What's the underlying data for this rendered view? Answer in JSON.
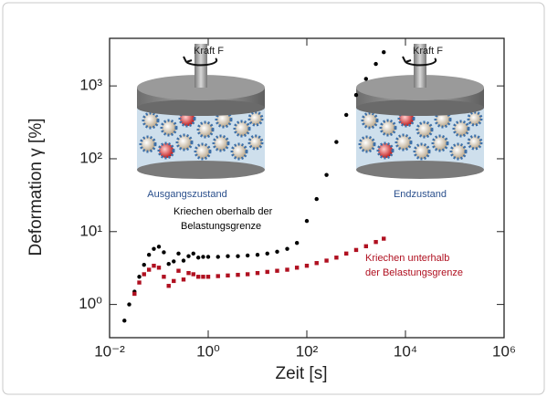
{
  "chart_data": {
    "type": "scatter",
    "x_label": "Zeit  [s]",
    "y_label": "Deformation γ  [%]",
    "log_x": true,
    "log_y": true,
    "xlim": [
      0.01,
      1000000
    ],
    "ylim": [
      0.35,
      4500
    ],
    "xticks": [
      {
        "value": 0.01,
        "label": "10⁻²"
      },
      {
        "value": 1,
        "label": "10⁰"
      },
      {
        "value": 100,
        "label": "10²"
      },
      {
        "value": 10000,
        "label": "10⁴"
      },
      {
        "value": 1000000,
        "label": "10⁶"
      }
    ],
    "yticks": [
      {
        "value": 1,
        "label": "10⁰"
      },
      {
        "value": 10,
        "label": "10¹"
      },
      {
        "value": 100,
        "label": "10²"
      },
      {
        "value": 1000,
        "label": "10³"
      }
    ],
    "series": [
      {
        "color": "#000000",
        "marker": "circle",
        "x": [
          0.02,
          0.025,
          0.032,
          0.04,
          0.05,
          0.063,
          0.079,
          0.1,
          0.126,
          0.158,
          0.2,
          0.25,
          0.316,
          0.4,
          0.5,
          0.63,
          0.79,
          1,
          1.58,
          2.5,
          4,
          6.3,
          10,
          15.8,
          25,
          40,
          63,
          100,
          158,
          251,
          398,
          631,
          1000,
          1585,
          2512,
          3631
        ],
        "values": [
          0.6,
          1.0,
          1.5,
          2.4,
          3.5,
          4.8,
          5.8,
          6.2,
          5.2,
          3.6,
          3.9,
          5.0,
          4.0,
          4.6,
          5.0,
          4.4,
          4.5,
          4.5,
          4.5,
          4.6,
          4.6,
          4.7,
          4.8,
          5.0,
          5.3,
          5.8,
          7,
          14,
          28,
          60,
          170,
          400,
          750,
          1250,
          2000,
          2900
        ]
      },
      {
        "color": "#b01020",
        "marker": "square",
        "x": [
          0.032,
          0.04,
          0.05,
          0.063,
          0.079,
          0.1,
          0.126,
          0.158,
          0.2,
          0.25,
          0.316,
          0.4,
          0.5,
          0.63,
          0.79,
          1,
          1.58,
          2.5,
          4,
          6.3,
          10,
          15.8,
          25,
          40,
          63,
          100,
          158,
          251,
          398,
          631,
          1000,
          1585,
          2512,
          3631
        ],
        "values": [
          1.4,
          2.0,
          2.6,
          3.0,
          3.4,
          3.2,
          2.4,
          1.8,
          2.1,
          2.9,
          2.2,
          2.7,
          2.6,
          2.4,
          2.4,
          2.4,
          2.45,
          2.5,
          2.55,
          2.6,
          2.7,
          2.8,
          2.9,
          3.0,
          3.2,
          3.4,
          3.7,
          4.0,
          4.4,
          5.0,
          5.6,
          6.3,
          7.2,
          8.0
        ]
      }
    ],
    "annotations": [
      {
        "lines": [
          "Kraft F"
        ],
        "color": "#222222"
      },
      {
        "lines": [
          "Kraft F"
        ],
        "color": "#222222"
      },
      {
        "lines": [
          "Ausgangszustand"
        ],
        "color": "#2a4f8c"
      },
      {
        "lines": [
          "Endzustand"
        ],
        "color": "#2a4f8c"
      },
      {
        "lines": [
          "Kriechen oberhalb der",
          "Belastungsgrenze"
        ],
        "color": "#000000"
      },
      {
        "lines": [
          "Kriechen unterhalb",
          "der  Belastungsgrenze"
        ],
        "color": "#b01020"
      }
    ]
  }
}
